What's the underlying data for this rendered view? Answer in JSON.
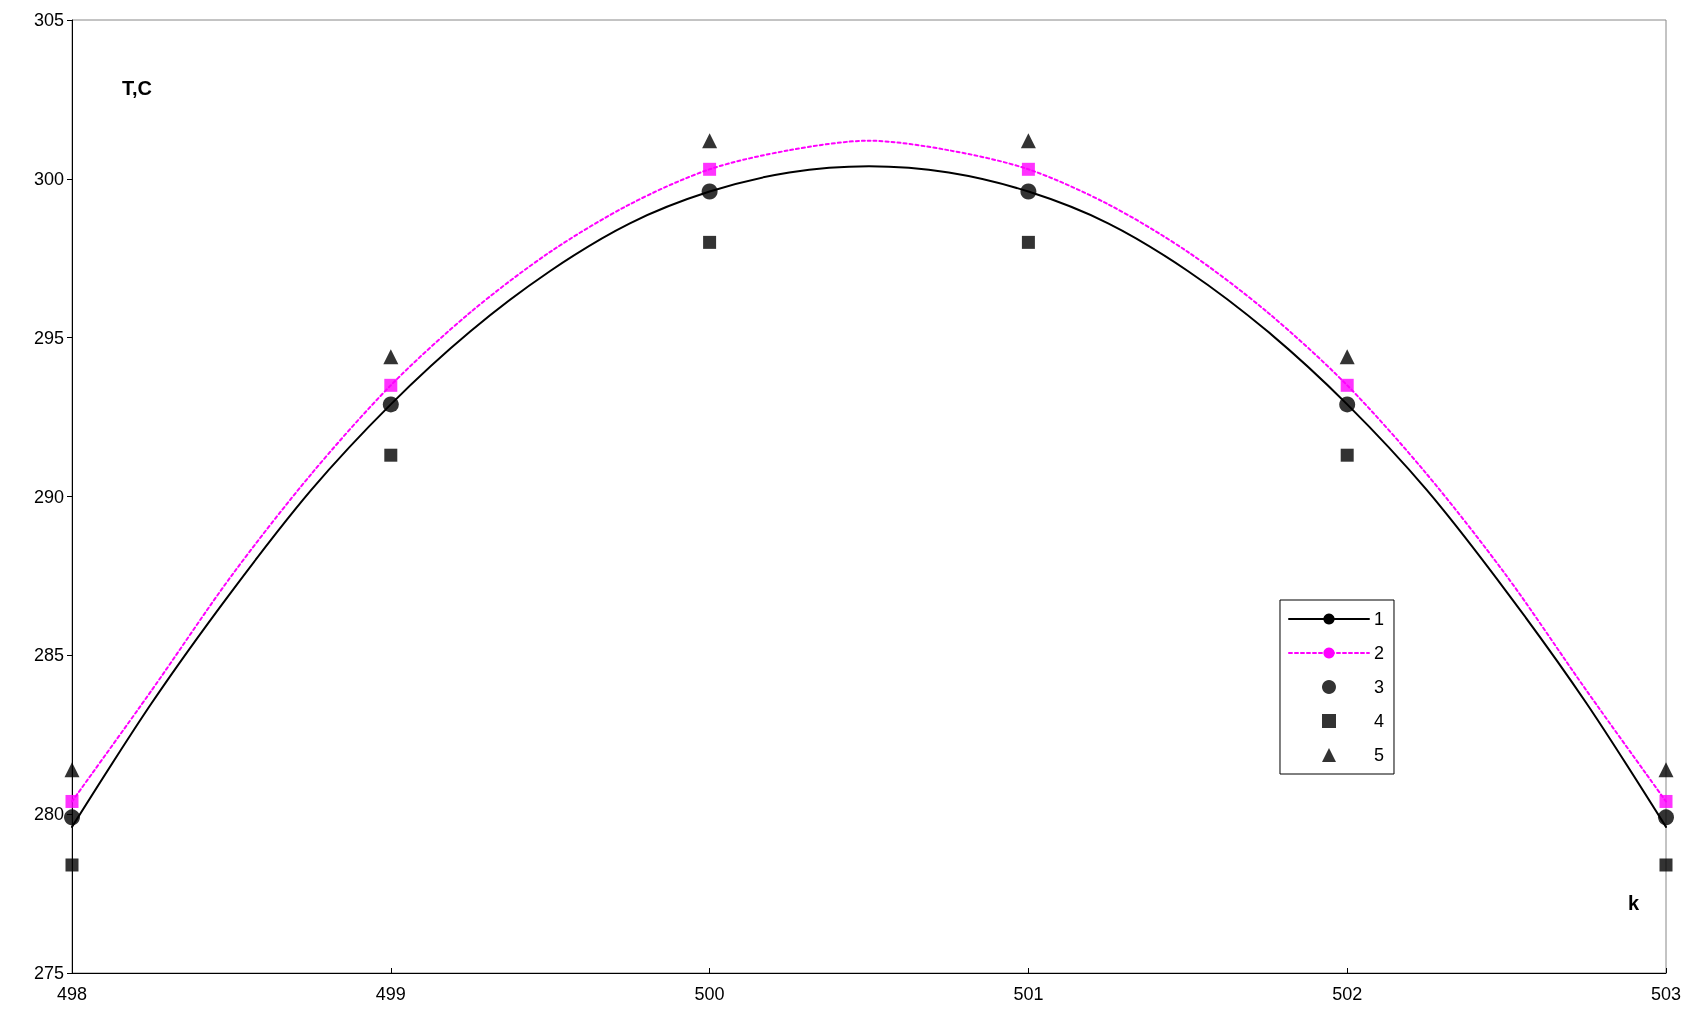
{
  "chart_data": {
    "type": "line",
    "xlabel": "k",
    "ylabel": "T,C",
    "xlim": [
      498,
      503
    ],
    "xticks": [
      498,
      499,
      500,
      501,
      502,
      503
    ],
    "ylim": [
      275,
      305
    ],
    "yticks": [
      275,
      280,
      285,
      290,
      295,
      300,
      305
    ],
    "grid": false,
    "legend": "bottom right",
    "series": [
      {
        "name": "1",
        "type": "line",
        "color": "#000000",
        "marker": "none",
        "line_style": "solid",
        "x": [
          498,
          498.25,
          498.5,
          498.75,
          499,
          499.25,
          499.5,
          499.75,
          500,
          500.25,
          500.5,
          500.75,
          501,
          501.25,
          501.5,
          501.75,
          502,
          502.25,
          502.5,
          502.75,
          503
        ],
        "values": [
          279.6,
          283.5,
          287.0,
          290.2,
          292.9,
          295.2,
          297.1,
          298.6,
          299.6,
          300.2,
          300.4,
          300.2,
          299.6,
          298.6,
          297.1,
          295.2,
          292.9,
          290.2,
          287.0,
          283.5,
          279.6
        ]
      },
      {
        "name": "2",
        "color": "#ff00ff",
        "marker": "none",
        "line_style": "dotted",
        "x": [
          498,
          498.25,
          498.5,
          498.75,
          499,
          499.25,
          499.5,
          499.75,
          500,
          500.25,
          500.5,
          500.75,
          501,
          501.25,
          501.5,
          501.75,
          502,
          502.25,
          502.5,
          502.75,
          503
        ],
        "values": [
          280.4,
          283.9,
          287.5,
          290.7,
          293.5,
          295.8,
          297.7,
          299.2,
          300.3,
          300.9,
          301.2,
          300.9,
          300.3,
          299.2,
          297.7,
          295.8,
          293.5,
          290.7,
          287.5,
          283.9,
          280.4
        ]
      },
      {
        "type": "scatter",
        "color": "#ff00ff",
        "marker": "square",
        "x": [
          498,
          499,
          500,
          501,
          502,
          503
        ],
        "values": [
          280.4,
          293.5,
          300.3,
          300.3,
          293.5,
          280.4
        ]
      },
      {
        "name": "3",
        "type": "scatter",
        "color": "#000000",
        "marker": "circle",
        "x": [
          498,
          499,
          500,
          501,
          502,
          503
        ],
        "values": [
          279.9,
          292.9,
          299.6,
          299.6,
          292.9,
          279.9
        ]
      },
      {
        "name": "4",
        "type": "scatter",
        "color": "#000000",
        "marker": "square",
        "x": [
          498,
          499,
          500,
          501,
          502,
          503
        ],
        "values": [
          278.4,
          291.3,
          298.0,
          298.0,
          291.3,
          278.4
        ]
      },
      {
        "name": "5",
        "type": "scatter",
        "color": "#000000",
        "marker": "triangle",
        "x": [
          498,
          499,
          500,
          501,
          502,
          503
        ],
        "values": [
          281.4,
          294.4,
          301.2,
          301.2,
          294.4,
          281.4
        ]
      }
    ]
  }
}
